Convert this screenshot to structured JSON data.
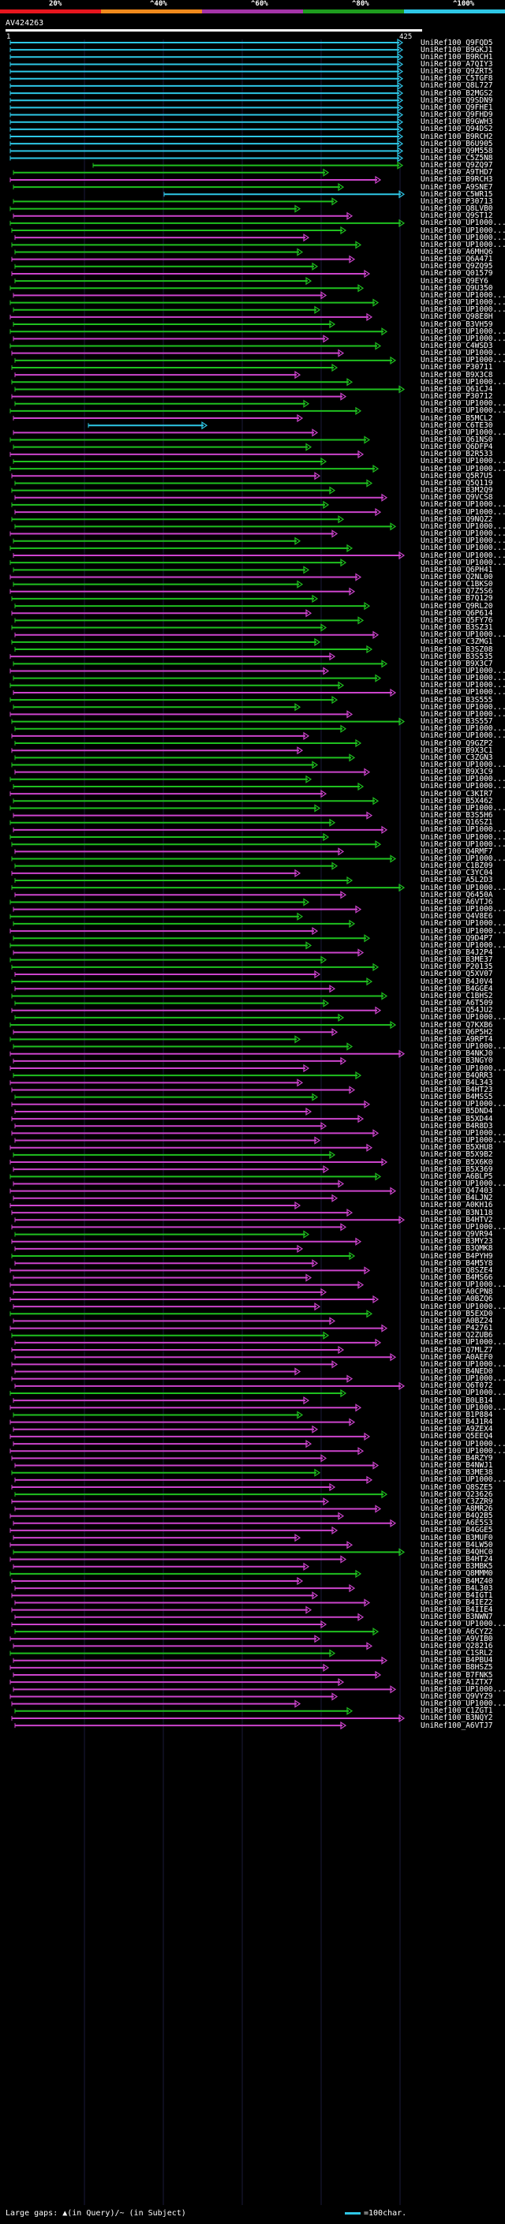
{
  "legend": {
    "labels": [
      "20%",
      "^40%",
      "^60%",
      "^80%",
      "^100%"
    ],
    "colors": [
      "#e8161e",
      "#f08a1c",
      "#a434a8",
      "#1e9c1e",
      "#2ec7e6"
    ]
  },
  "query": {
    "name": "AV424263",
    "start": "1",
    "end": "425"
  },
  "footer": {
    "gaps_text": "Large gaps: ▲(in Query)/~ (in Subject)",
    "scale_text": "=100char."
  },
  "colors": {
    "cyan": "#2ec7e6",
    "green": "#1fc01f",
    "magenta": "#cc44cc",
    "white": "#ffffff"
  },
  "hits": [
    "UniRef100_Q9FQD5",
    "UniRef100_B9GKJ1",
    "UniRef100_B9RCH1",
    "UniRef100_A7QIY3",
    "UniRef100_Q9ZRT5",
    "UniRef100_C5TGF8",
    "UniRef100_Q8L727",
    "UniRef100_B2MGS2",
    "UniRef100_Q9SDN9",
    "UniRef100_Q9FHE1",
    "UniRef100_Q9FHD9",
    "UniRef100_B9GWH3",
    "UniRef100_Q94DS2",
    "UniRef100_B9RCH2",
    "UniRef100_B6U905",
    "UniRef100_Q9M558",
    "UniRef100_C5Z5N8",
    "UniRef100_Q9ZQ97",
    "UniRef100_A9THD7",
    "UniRef100_B9RCH3",
    "UniRef100_A9SNE7",
    "UniRef100_C5WR15",
    "UniRef100_P30713",
    "UniRef100_Q8LVB0",
    "UniRef100_Q9ST12",
    "UniRef100_UP1000...",
    "UniRef100_UP1000...",
    "UniRef100_UP1000...",
    "UniRef100_UP1000...",
    "UniRef100_A6MHQ6",
    "UniRef100_Q6A471",
    "UniRef100_Q9ZQ95",
    "UniRef100_Q01579",
    "UniRef100_Q9EY6",
    "UniRef100_Q9U350",
    "UniRef100_UP1000...",
    "UniRef100_UP1000...",
    "UniRef100_UP1000...",
    "UniRef100_Q98E8H",
    "UniRef100_B3VH59",
    "UniRef100_UP1000...",
    "UniRef100_UP1000...",
    "UniRef100_C4WSD3",
    "UniRef100_UP1000...",
    "UniRef100_UP1000...",
    "UniRef100_P30711",
    "UniRef100_B9X3C8",
    "UniRef100_UP1000...",
    "UniRef100_Q61CJ4",
    "UniRef100_P30712",
    "UniRef100_UP1000...",
    "UniRef100_UP1000...",
    "UniRef100_B5MCL2",
    "UniRef100_C6TE30",
    "UniRef100_UP1000...",
    "UniRef100_Q61NS0",
    "UniRef100_Q6DFP4",
    "UniRef100_B2R533",
    "UniRef100_UP1000...",
    "UniRef100_UP1000...",
    "UniRef100_Q5R7U5",
    "UniRef100_Q5Q119",
    "UniRef100_B3M2Q9",
    "UniRef100_Q9VCS8",
    "UniRef100_UP1000...",
    "UniRef100_UP1000...",
    "UniRef100_Q9NQZ2",
    "UniRef100_UP1000...",
    "UniRef100_UP1000...",
    "UniRef100_UP1000...",
    "UniRef100_UP1000...",
    "UniRef100_UP1000...",
    "UniRef100_UP1000...",
    "UniRef100_Q6PH41",
    "UniRef100_Q2NL00",
    "UniRef100_C1BKS0",
    "UniRef100_Q7Z5S6",
    "UniRef100_B7Q129",
    "UniRef100_Q9RL20",
    "UniRef100_Q6P614",
    "UniRef100_Q5FY76",
    "UniRef100_B3SZ31",
    "UniRef100_UP1000...",
    "UniRef100_C3ZMG1",
    "UniRef100_B3SZ08",
    "UniRef100_B3S535",
    "UniRef100_B9X3C7",
    "UniRef100_UP1000...",
    "UniRef100_UP1000...",
    "UniRef100_UP1000...",
    "UniRef100_UP1000...",
    "UniRef100_B3S555",
    "UniRef100_UP1000...",
    "UniRef100_UP1000...",
    "UniRef100_B3S557",
    "UniRef100_UP1000...",
    "UniRef100_UP1000...",
    "UniRef100_Q9GZP2",
    "UniRef100_B9X3C1",
    "UniRef100_C3ZGN3",
    "UniRef100_UP1000...",
    "UniRef100_B9X3C9",
    "UniRef100_UP1000...",
    "UniRef100_UP1000...",
    "UniRef100_C3KIR7",
    "UniRef100_B5X462",
    "UniRef100_UP1000...",
    "UniRef100_B3S5H6",
    "UniRef100_Q16SZ1",
    "UniRef100_UP1000...",
    "UniRef100_UP1000...",
    "UniRef100_UP1000...",
    "UniRef100_Q4RMF7",
    "UniRef100_UP1000...",
    "UniRef100_C1BZ09",
    "UniRef100_C3YC04",
    "UniRef100_A5L2D3",
    "UniRef100_UP1000...",
    "UniRef100_Q6450A",
    "UniRef100_A6VTJ6",
    "UniRef100_UP1000...",
    "UniRef100_Q4V8E6",
    "UniRef100_UP1000...",
    "UniRef100_UP1000...",
    "UniRef100_Q9D4P7",
    "UniRef100_UP1000...",
    "UniRef100_B4J2P4",
    "UniRef100_B3ME37",
    "UniRef100_P20135",
    "UniRef100_Q5XV07",
    "UniRef100_B4J0V4",
    "UniRef100_B4GGE4",
    "UniRef100_C1BHS2",
    "UniRef100_A6T509",
    "UniRef100_Q54JU2",
    "UniRef100_UP1000...",
    "UniRef100_Q7KXB6",
    "UniRef100_Q6P5H2",
    "UniRef100_A9RPT4",
    "UniRef100_UP1000...",
    "UniRef100_B4NKJ0",
    "UniRef100_B3NGY0",
    "UniRef100_UP1000...",
    "UniRef100_B4QRR3",
    "UniRef100_B4L343",
    "UniRef100_B4HT23",
    "UniRef100_B4MSS5",
    "UniRef100_UP1000...",
    "UniRef100_B5DND4",
    "UniRef100_B5XD44",
    "UniRef100_B4R8D3",
    "UniRef100_UP1000...",
    "UniRef100_UP1000...",
    "UniRef100_B5XHU8",
    "UniRef100_B5X9B2",
    "UniRef100_B5X6K0",
    "UniRef100_B5X369",
    "UniRef100_A6BLP5",
    "UniRef100_UP1000...",
    "UniRef100_Q47403",
    "UniRef100_B4LJN2",
    "UniRef100_A0KH16",
    "UniRef100_B3N118",
    "UniRef100_B4HTV2",
    "UniRef100_UP1000...",
    "UniRef100_Q9VR94",
    "UniRef100_B3MY23",
    "UniRef100_B3QMK8",
    "UniRef100_B4PYH9",
    "UniRef100_B4M5Y8",
    "UniRef100_Q8SZE4",
    "UniRef100_B4MS66",
    "UniRef100_UP1000...",
    "UniRef100_A0CPN8",
    "UniRef100_A0BZQ6",
    "UniRef100_UP1000...",
    "UniRef100_B5EXD0",
    "UniRef100_A0BZ24",
    "UniRef100_P42761",
    "UniRef100_Q2ZUB6",
    "UniRef100_UP1000...",
    "UniRef100_Q7MLZ7",
    "UniRef100_A0AEF0",
    "UniRef100_UP1000...",
    "UniRef100_B4NED0",
    "UniRef100_UP1000...",
    "UniRef100_Q6T072",
    "UniRef100_UP1000...",
    "UniRef100_B0LB14",
    "UniRef100_UP1000...",
    "UniRef100_B1P884",
    "UniRef100_B4J1R4",
    "UniRef100_A9ZEX4",
    "UniRef100_Q5EEQ4",
    "UniRef100_UP1000...",
    "UniRef100_UP1000...",
    "UniRef100_B4RZY9",
    "UniRef100_B4NWJ1",
    "UniRef100_B3ME38",
    "UniRef100_UP1000...",
    "UniRef100_Q8SZE5",
    "UniRef100_Q23626",
    "UniRef100_C3ZZR9",
    "UniRef100_A8MR26",
    "UniRef100_B4Q2B5",
    "UniRef100_A6E5S3",
    "UniRef100_B4GGE5",
    "UniRef100_B3MUF0",
    "UniRef100_B4LW50",
    "UniRef100_B4QHC0",
    "UniRef100_B4HT24",
    "UniRef100_B3MBK5",
    "UniRef100_Q8MMM0",
    "UniRef100_B4MZ40",
    "UniRef100_B4L303",
    "UniRef100_B4IGT1",
    "UniRef100_B4IEZ2",
    "UniRef100_B4IIE4",
    "UniRef100_B3NWN7",
    "UniRef100_UP1000...",
    "UniRef100_A6CYZ2",
    "UniRef100_A9VIB0",
    "UniRef100_Q28216",
    "UniRef100_C1SRL2",
    "UniRef100_B4PBU4",
    "UniRef100_B8HSZ5",
    "UniRef100_B7FNK5",
    "UniRef100_A1ZTX7",
    "UniRef100_UP1000...",
    "UniRef100_Q9VYZ9",
    "UniRef100_UP1000...",
    "UniRef100_C1ZGT1",
    "UniRef100_B3NQY2",
    "UniRef100_A6VTJ7"
  ]
}
